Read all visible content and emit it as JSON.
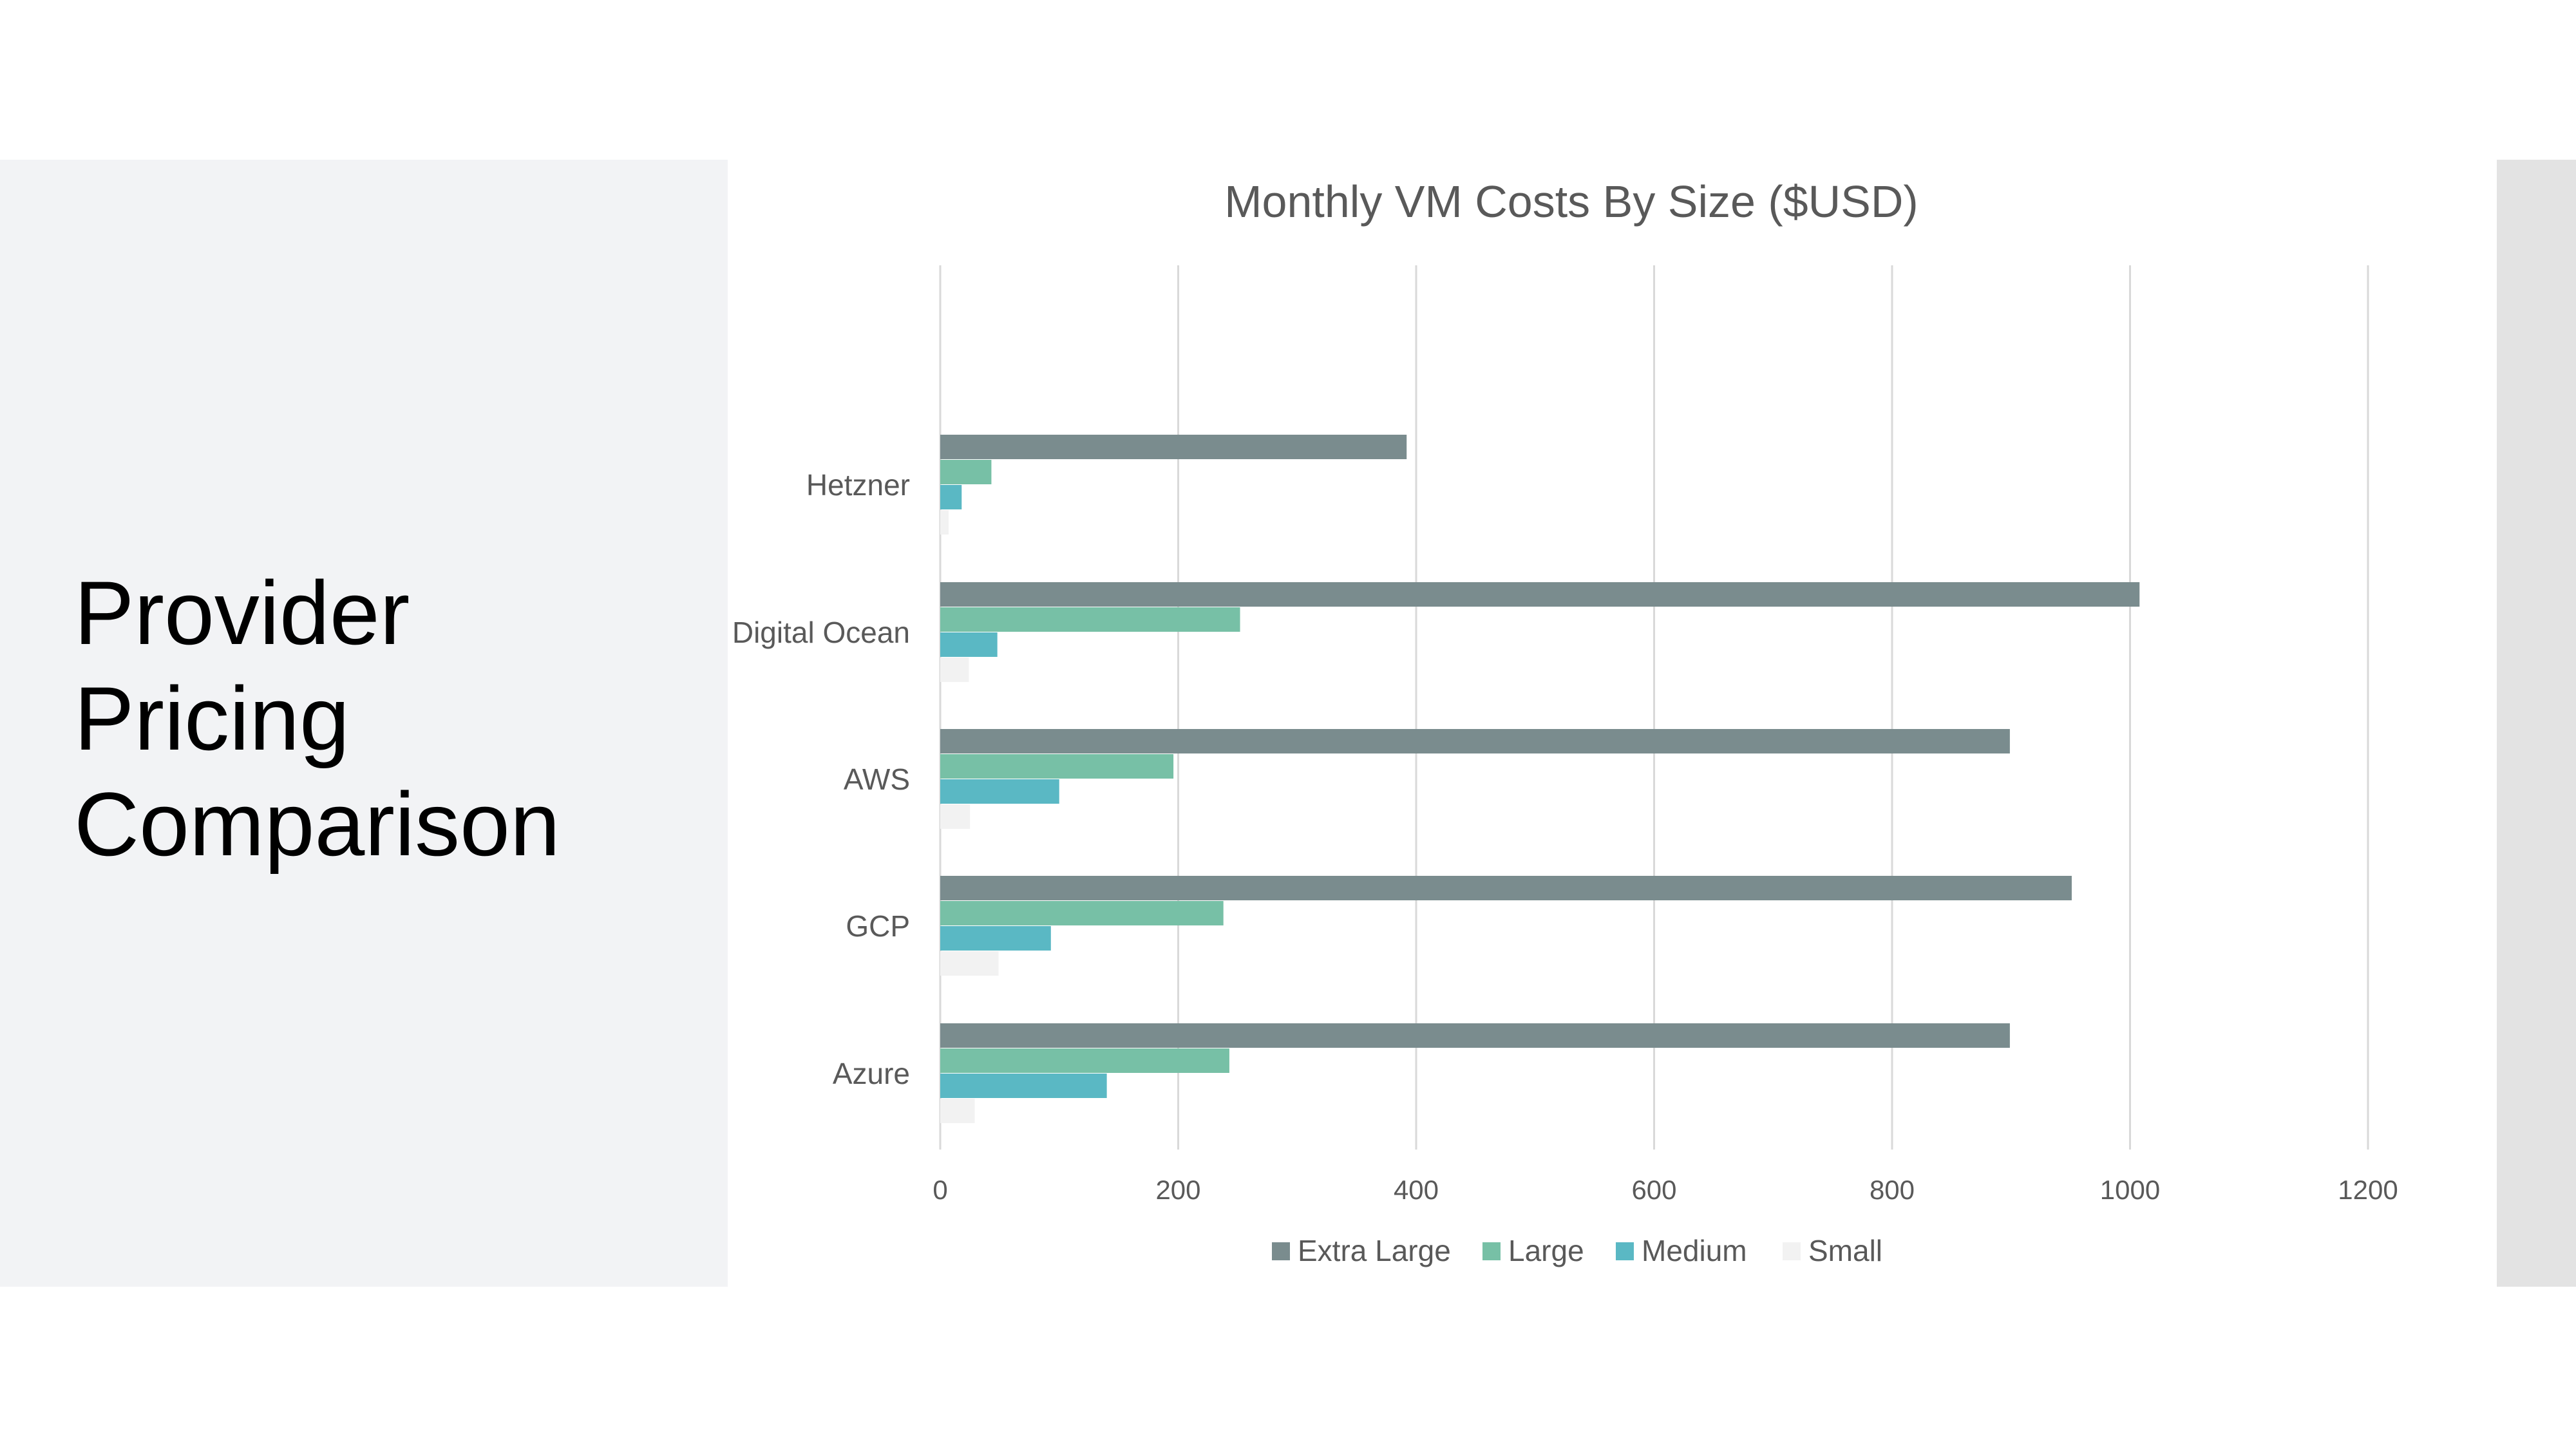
{
  "slide": {
    "title": "Provider\nPricing\nComparison"
  },
  "colors": {
    "left_panel": "#f2f3f5",
    "right_strip": "#e3e3e3",
    "grid": "#d9d9d9",
    "text": "#595959"
  },
  "chart_data": {
    "type": "bar",
    "orientation": "horizontal",
    "title": "Monthly VM Costs By Size ($USD)",
    "xlabel": "",
    "ylabel": "",
    "categories": [
      "Hetzner",
      "Digital Ocean",
      "AWS",
      "GCP",
      "Azure"
    ],
    "series": [
      {
        "name": "Extra Large",
        "color": "#7a8c8e",
        "values": [
          392,
          1008,
          899,
          951,
          899
        ]
      },
      {
        "name": "Large",
        "color": "#77c0a6",
        "values": [
          43,
          252,
          196,
          238,
          243
        ]
      },
      {
        "name": "Medium",
        "color": "#5ab8c4",
        "values": [
          18,
          48,
          100,
          93,
          140
        ]
      },
      {
        "name": "Small",
        "color": "#f2f2f2",
        "values": [
          7,
          24,
          25,
          49,
          29
        ]
      }
    ],
    "xlim": [
      0,
      1200
    ],
    "xticks": [
      "0",
      "200",
      "400",
      "600",
      "800",
      "1000",
      "1200"
    ],
    "grid": true,
    "legend_position": "bottom"
  }
}
